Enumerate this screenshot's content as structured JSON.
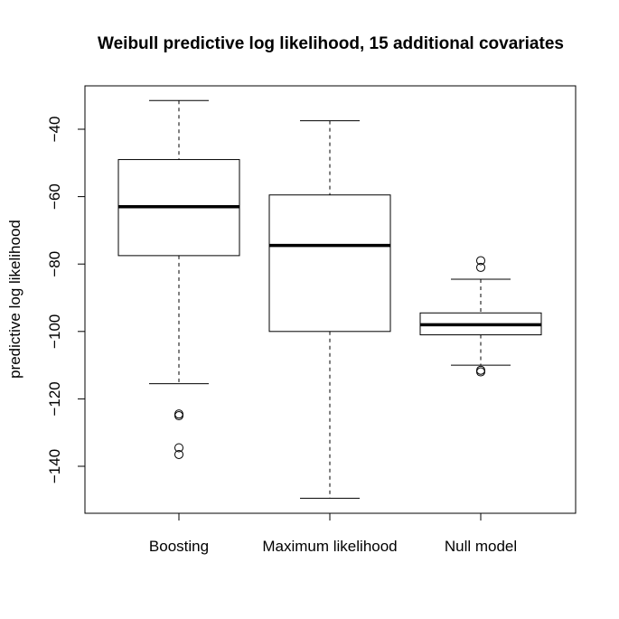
{
  "chart_data": {
    "type": "boxplot",
    "title": "Weibull predictive log likelihood, 15 additional covariates",
    "xlabel": "",
    "ylabel": "predictive log likelihood",
    "ylim": [
      -155,
      -28
    ],
    "yticks": [
      -40,
      -60,
      -80,
      -100,
      -120,
      -140
    ],
    "grid": false,
    "categories": [
      "Boosting",
      "Maximum likelihood",
      "Null model"
    ],
    "boxes": [
      {
        "category": "Boosting",
        "whisker_low": -115.5,
        "q1": -77.5,
        "median": -63,
        "q3": -49,
        "whisker_high": -31.5,
        "outliers": [
          -124.5,
          -125,
          -134.5,
          -136.5
        ]
      },
      {
        "category": "Maximum likelihood",
        "whisker_low": -149.5,
        "q1": -100,
        "median": -74.5,
        "q3": -59.5,
        "whisker_high": -37.5,
        "outliers": []
      },
      {
        "category": "Null model",
        "whisker_low": -110,
        "q1": -101,
        "median": -98,
        "q3": -94.5,
        "whisker_high": -84.5,
        "outliers": [
          -79,
          -81,
          -111.5,
          -112
        ]
      }
    ]
  }
}
